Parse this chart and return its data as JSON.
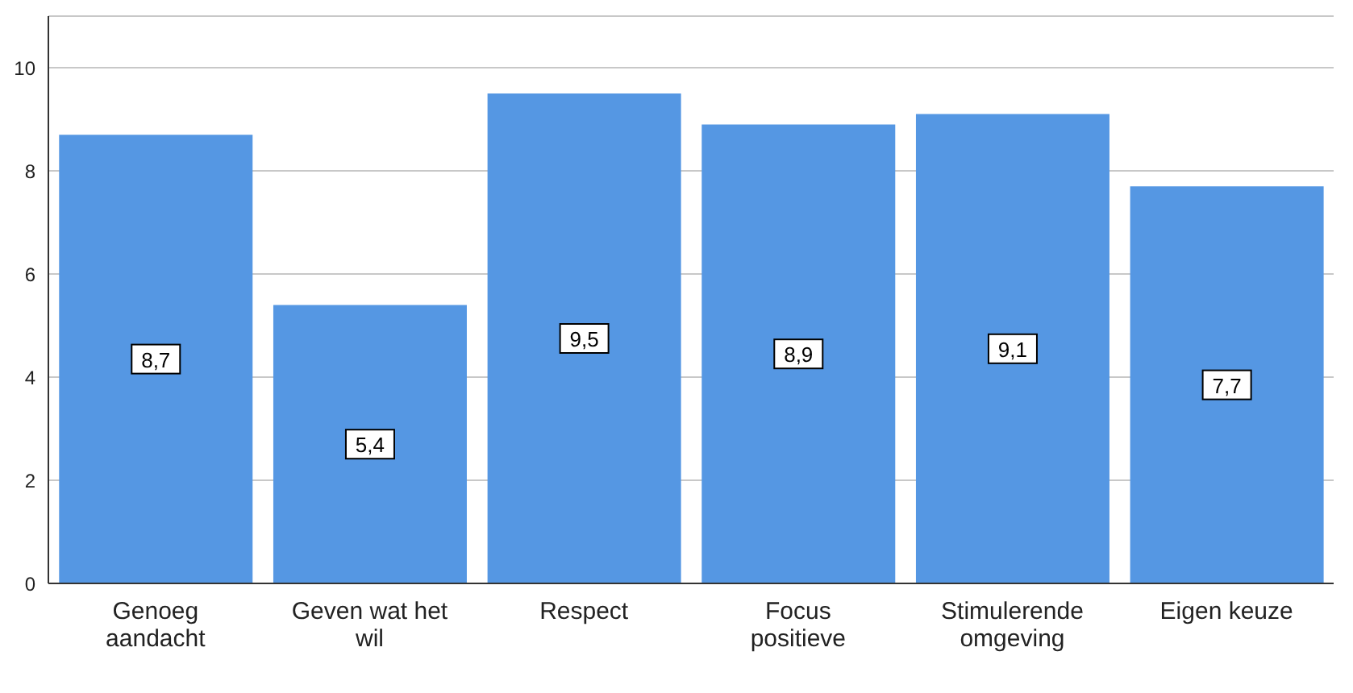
{
  "chart_data": {
    "type": "bar",
    "categories": [
      "Genoeg aandacht",
      "Geven wat het wil",
      "Respect",
      "Focus positieve",
      "Stimulerende omgeving",
      "Eigen keuze"
    ],
    "values": [
      8.7,
      5.4,
      9.5,
      8.9,
      9.1,
      7.7
    ],
    "value_labels": [
      "8,7",
      "5,4",
      "9,5",
      "8,9",
      "9,1",
      "7,7"
    ],
    "color": "#5597e3",
    "ylim": [
      0,
      11
    ],
    "yticks": [
      0,
      2,
      4,
      6,
      8,
      10
    ],
    "grid": "y",
    "legend": false
  }
}
